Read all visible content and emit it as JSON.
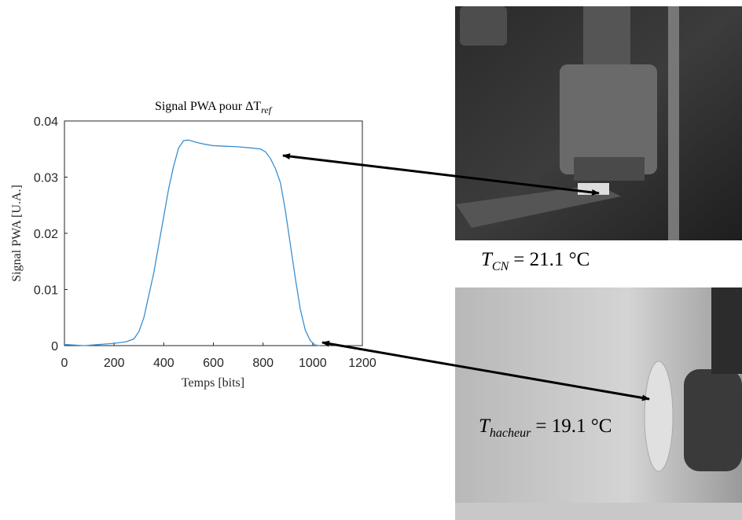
{
  "chart_data": {
    "type": "line",
    "title": "Signal PWA pour ΔT",
    "title_subscript": "ref",
    "xlabel": "Temps [bits]",
    "ylabel": "Signal PWA [U.A.]",
    "x": [
      0,
      40,
      80,
      140,
      200,
      250,
      280,
      300,
      320,
      340,
      360,
      380,
      400,
      420,
      440,
      460,
      480,
      500,
      530,
      560,
      600,
      650,
      700,
      750,
      790,
      810,
      830,
      850,
      870,
      890,
      910,
      930,
      950,
      970,
      990,
      1010,
      1030
    ],
    "values": [
      0.0002,
      0.0001,
      0.0,
      0.0002,
      0.0004,
      0.0007,
      0.0012,
      0.0025,
      0.005,
      0.009,
      0.013,
      0.018,
      0.023,
      0.028,
      0.032,
      0.0352,
      0.0365,
      0.0366,
      0.0362,
      0.0359,
      0.0356,
      0.0355,
      0.0354,
      0.0352,
      0.035,
      0.0345,
      0.0333,
      0.0315,
      0.029,
      0.024,
      0.018,
      0.012,
      0.0065,
      0.0028,
      0.0009,
      0.0001,
      0.0
    ],
    "color": "#3a8fd0",
    "xlim": [
      0,
      1200
    ],
    "xticks": [
      0,
      200,
      400,
      600,
      800,
      1000,
      1200
    ],
    "ylim": [
      0,
      0.04
    ],
    "yticks": [
      0,
      0.01,
      0.02,
      0.03,
      0.04
    ],
    "annotations": [
      {
        "symbol": "T",
        "subscript": "CN",
        "text": "= 21.1 °C"
      },
      {
        "symbol": "T",
        "subscript": "hacheur",
        "text": "= 19.1 °C"
      }
    ]
  }
}
